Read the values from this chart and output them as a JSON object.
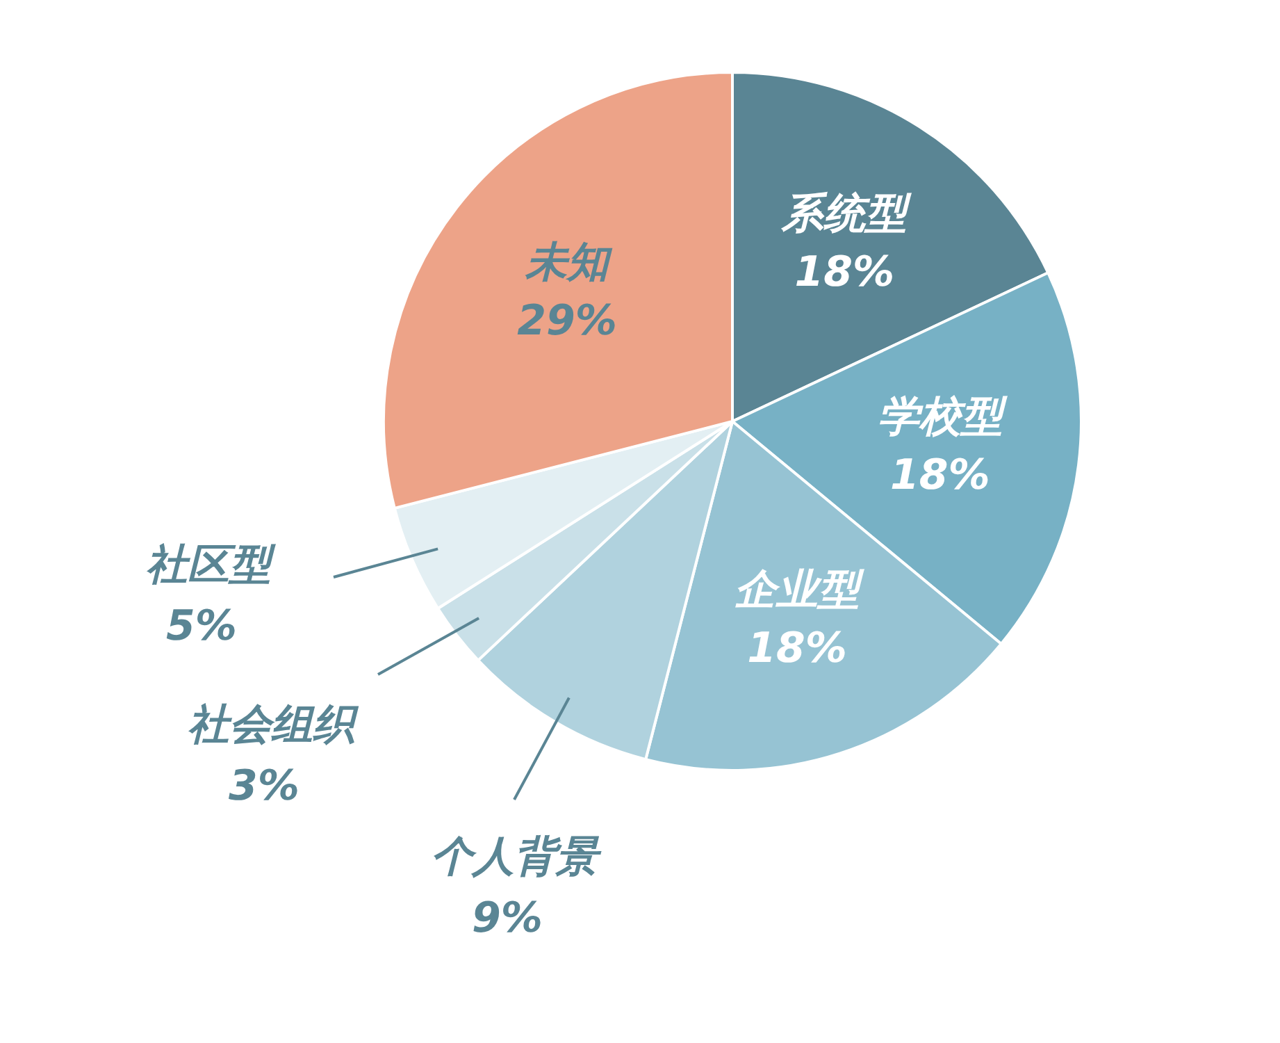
{
  "chart_data": {
    "type": "pie",
    "categories": [
      "系统型",
      "学校型",
      "企业型",
      "个人背景",
      "社会组织",
      "社区型",
      "未知"
    ],
    "values": [
      18,
      18,
      18,
      9,
      3,
      5,
      29
    ],
    "colors": [
      "#5a8594",
      "#77b1c5",
      "#96c3d3",
      "#b0d2de",
      "#c9e0e8",
      "#e3eff3",
      "#eda388"
    ],
    "value_labels": [
      "18%",
      "18%",
      "18%",
      "9%",
      "3%",
      "5%",
      "29%"
    ],
    "legend": false
  }
}
